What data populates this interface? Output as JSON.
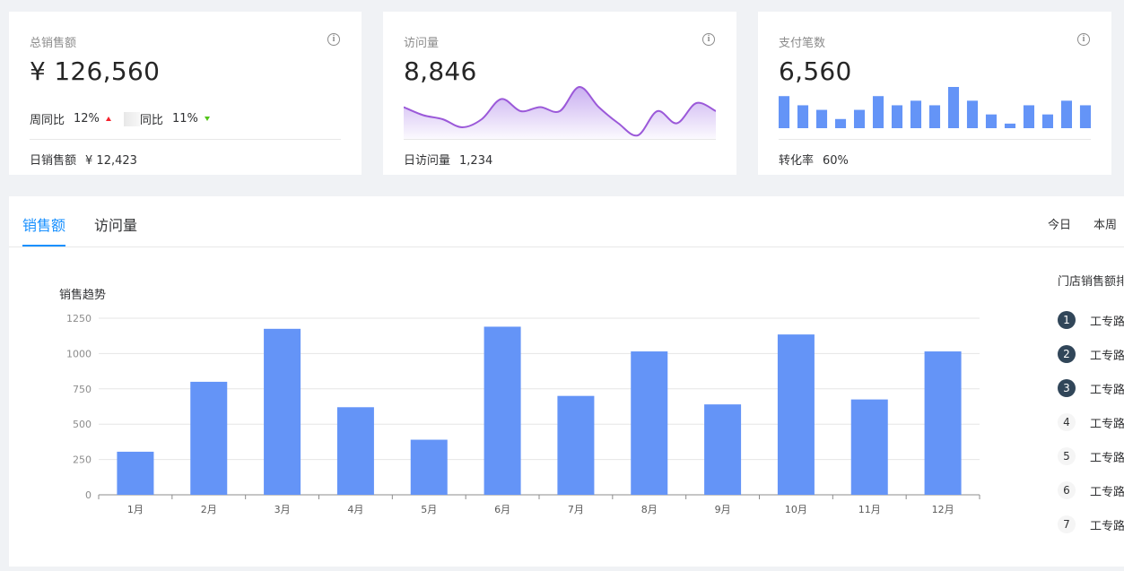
{
  "cards": {
    "sales": {
      "title": "总销售额",
      "value": "¥ 126,560",
      "week_label": "周同比",
      "week_value": "12%",
      "day_label": "同比",
      "day_value": "11%",
      "foot_label": "日销售额",
      "foot_value": "¥ 12,423"
    },
    "visits": {
      "title": "访问量",
      "value": "8,846",
      "foot_label": "日访问量",
      "foot_value": "1,234",
      "area_values": [
        7,
        5,
        4,
        2,
        4,
        9,
        6,
        7,
        6,
        12,
        7,
        3,
        0,
        6,
        3,
        8,
        6
      ]
    },
    "payments": {
      "title": "支付笔数",
      "value": "6,560",
      "foot_label": "转化率",
      "foot_value": "60%",
      "bar_values": [
        7,
        5,
        4,
        2,
        4,
        7,
        5,
        6,
        5,
        9,
        6,
        3,
        1,
        5,
        3,
        6,
        5
      ]
    }
  },
  "tabs": [
    {
      "label": "销售额",
      "active": true
    },
    {
      "label": "访问量",
      "active": false
    }
  ],
  "ranges": [
    "今日",
    "本周"
  ],
  "ranking": {
    "title": "门店销售额排",
    "items": [
      {
        "rank": "1",
        "name": "工专路"
      },
      {
        "rank": "2",
        "name": "工专路"
      },
      {
        "rank": "3",
        "name": "工专路"
      },
      {
        "rank": "4",
        "name": "工专路"
      },
      {
        "rank": "5",
        "name": "工专路"
      },
      {
        "rank": "6",
        "name": "工专路"
      },
      {
        "rank": "7",
        "name": "工专路"
      }
    ]
  },
  "colors": {
    "accent": "#1890ff",
    "bar": "#6494f7",
    "area_line": "#9b59d9",
    "up": "#f5222d",
    "down": "#52c41a"
  },
  "chart_data": {
    "type": "bar",
    "title": "销售趋势",
    "categories": [
      "1月",
      "2月",
      "3月",
      "4月",
      "5月",
      "6月",
      "7月",
      "8月",
      "9月",
      "10月",
      "11月",
      "12月"
    ],
    "values": [
      305,
      800,
      1175,
      620,
      390,
      1190,
      700,
      1015,
      640,
      1135,
      675,
      1015
    ],
    "yticks": [
      0,
      250,
      500,
      750,
      1000,
      1250
    ],
    "ylim": [
      0,
      1250
    ],
    "grid": true
  }
}
